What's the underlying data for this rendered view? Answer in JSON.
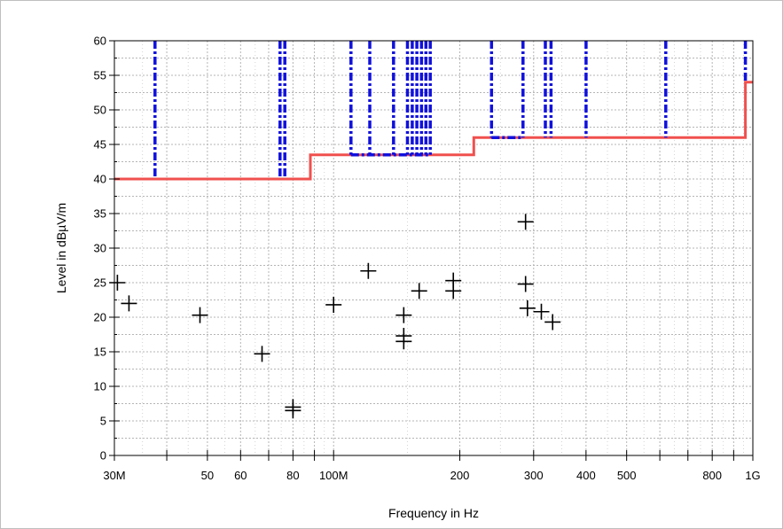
{
  "chart_data": {
    "type": "line",
    "title": "",
    "xlabel": "Frequency in Hz",
    "ylabel": "Level in dBµV/m",
    "xscale": "log",
    "xlim": [
      30000000,
      1000000000
    ],
    "ylim": [
      0,
      60
    ],
    "grid": true,
    "colors": {
      "limit": "#f0504e",
      "peak": "#1111dd",
      "marker": "#000000"
    },
    "x_tick_labels": [
      {
        "value": 30000000,
        "label": "30M"
      },
      {
        "value": 50000000,
        "label": "50"
      },
      {
        "value": 60000000,
        "label": "60"
      },
      {
        "value": 80000000,
        "label": "80"
      },
      {
        "value": 100000000,
        "label": "100M"
      },
      {
        "value": 200000000,
        "label": "200"
      },
      {
        "value": 300000000,
        "label": "300"
      },
      {
        "value": 400000000,
        "label": "400"
      },
      {
        "value": 500000000,
        "label": "500"
      },
      {
        "value": 800000000,
        "label": "800"
      },
      {
        "value": 1000000000,
        "label": "1G"
      }
    ],
    "y_ticks": [
      0,
      5,
      10,
      15,
      20,
      25,
      30,
      35,
      40,
      45,
      50,
      55,
      60
    ],
    "series": [
      {
        "style": "limit-line",
        "x": [
          30000000,
          88000000,
          88000000,
          216000000,
          216000000,
          960000000,
          960000000,
          1000000000
        ],
        "y": [
          40,
          40,
          43.5,
          43.5,
          46,
          46,
          54,
          54
        ]
      },
      {
        "style": "peak-trace",
        "segments": [
          [
            [
              37500000,
              60
            ],
            [
              37500000,
              40
            ]
          ],
          [
            [
              74500000,
              60
            ],
            [
              74500000,
              40
            ]
          ],
          [
            [
              76500000,
              60
            ],
            [
              76500000,
              40
            ]
          ],
          [
            [
              110000000,
              60
            ],
            [
              110000000,
              43.5
            ]
          ],
          [
            [
              122000000,
              60
            ],
            [
              122000000,
              43.5
            ]
          ],
          [
            [
              139000000,
              60
            ],
            [
              139000000,
              43.5
            ]
          ],
          [
            [
              150000000,
              60
            ],
            [
              150000000,
              43.5
            ]
          ],
          [
            [
              154000000,
              60
            ],
            [
              154000000,
              43.5
            ]
          ],
          [
            [
              158000000,
              60
            ],
            [
              158000000,
              43.5
            ]
          ],
          [
            [
              162000000,
              60
            ],
            [
              162000000,
              43.5
            ]
          ],
          [
            [
              166000000,
              60
            ],
            [
              166000000,
              43.5
            ]
          ],
          [
            [
              170000000,
              60
            ],
            [
              170000000,
              43.5
            ]
          ],
          [
            [
              238000000,
              60
            ],
            [
              238000000,
              46
            ]
          ],
          [
            [
              283000000,
              60
            ],
            [
              283000000,
              46
            ]
          ],
          [
            [
              320000000,
              60
            ],
            [
              320000000,
              46
            ]
          ],
          [
            [
              330000000,
              60
            ],
            [
              330000000,
              46
            ]
          ],
          [
            [
              400000000,
              60
            ],
            [
              400000000,
              46
            ]
          ],
          [
            [
              620000000,
              60
            ],
            [
              620000000,
              46
            ]
          ],
          [
            [
              960000000,
              60
            ],
            [
              960000000,
              54
            ]
          ]
        ]
      },
      {
        "style": "markers",
        "x": [
          30500000,
          32500000,
          48000000,
          67500000,
          80000000,
          80000000,
          100000000,
          121000000,
          147000000,
          147000000,
          147000000,
          160000000,
          193000000,
          193000000,
          287000000,
          287000000,
          290000000,
          313000000,
          333000000
        ],
        "y": [
          25,
          22,
          20.3,
          14.7,
          7,
          6.5,
          21.8,
          26.7,
          20.3,
          17.3,
          16.5,
          23.8,
          25.3,
          23.8,
          33.8,
          24.8,
          21.3,
          20.8,
          19.3
        ]
      }
    ]
  }
}
